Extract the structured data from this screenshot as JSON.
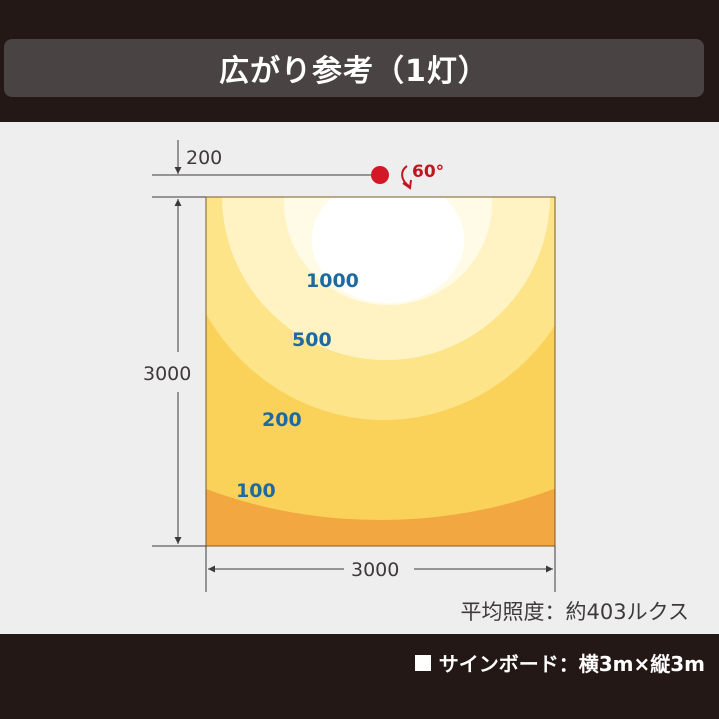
{
  "title": "広がり参考（1灯）",
  "dimensions": {
    "offset": "200",
    "height": "3000",
    "width": "3000",
    "angle": "60°"
  },
  "zones": [
    {
      "label": "1000",
      "color": "#ffffff"
    },
    {
      "label": "500",
      "color": "#fff3c4"
    },
    {
      "label": "200",
      "color": "#fde489"
    },
    {
      "label": "100",
      "color": "#fbd259"
    }
  ],
  "colors": {
    "edge": "#f2a740",
    "label": "#1e6aa0",
    "marker": "#d31726",
    "angle": "#c0161f"
  },
  "average": "平均照度：約403ルクス",
  "footer": "サインボード：横3m×縦3m"
}
